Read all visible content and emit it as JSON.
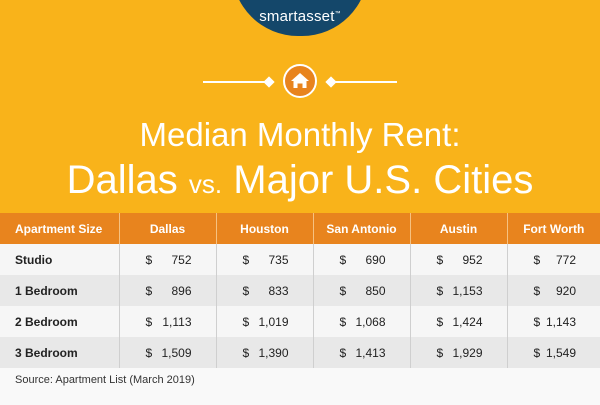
{
  "brand": {
    "logo": "smartasset",
    "logo_mark": "™"
  },
  "icon": "home-icon",
  "title": {
    "line1": "Median Monthly Rent:",
    "line2_a": "Dallas",
    "line2_vs": "vs.",
    "line2_b": "Major U.S. Cities"
  },
  "colors": {
    "header_bg": "#f9b31a",
    "table_header_bg": "#e8841e",
    "logo_bg": "#14476a"
  },
  "chart_data": {
    "type": "table",
    "columns": [
      "Apartment Size",
      "Dallas",
      "Houston",
      "San Antonio",
      "Austin",
      "Fort Worth"
    ],
    "currency_symbol": "$",
    "rows": [
      {
        "label": "Studio",
        "values": [
          "752",
          "735",
          "690",
          "952",
          "772"
        ]
      },
      {
        "label": "1 Bedroom",
        "values": [
          "896",
          "833",
          "850",
          "1,153",
          "920"
        ]
      },
      {
        "label": "2 Bedroom",
        "values": [
          "1,113",
          "1,019",
          "1,068",
          "1,424",
          "1,143"
        ]
      },
      {
        "label": "3 Bedroom",
        "values": [
          "1,509",
          "1,390",
          "1,413",
          "1,929",
          "1,549"
        ]
      }
    ]
  },
  "source": "Source: Apartment List (March 2019)"
}
